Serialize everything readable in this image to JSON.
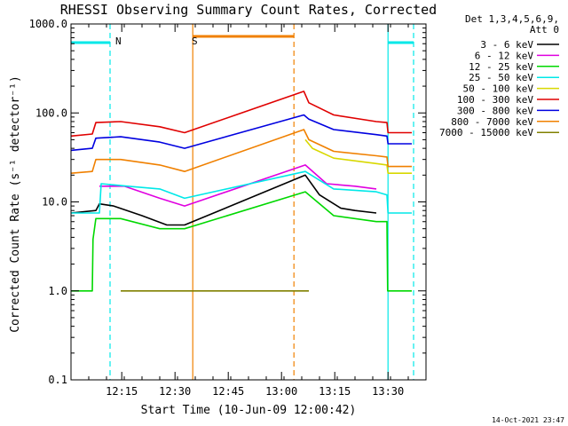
{
  "chart_data": {
    "type": "line",
    "title": "RHESSI Observing Summary Count Rates, Corrected",
    "xlabel": "Start Time (10-Jun-09 12:00:42)",
    "ylabel": "Corrected Count Rate (s⁻¹ detector⁻¹)",
    "yscale": "log",
    "ylim": [
      0.1,
      1000
    ],
    "xlim_minutes": [
      0,
      100
    ],
    "x_ticks": [
      {
        "label": "12:15",
        "t": 14.3
      },
      {
        "label": "12:30",
        "t": 29.3
      },
      {
        "label": "12:45",
        "t": 44.3
      },
      {
        "label": "13:00",
        "t": 59.3
      },
      {
        "label": "13:15",
        "t": 74.3
      },
      {
        "label": "13:30",
        "t": 89.3
      }
    ],
    "y_ticks": [
      {
        "label": "0.1",
        "v": 0.1
      },
      {
        "label": "1.0",
        "v": 1.0
      },
      {
        "label": "10.0",
        "v": 10.0
      },
      {
        "label": "100.0",
        "v": 100.0
      },
      {
        "label": "1000.0",
        "v": 1000.0
      }
    ],
    "legend_header": [
      "Det 1,3,4,5,6,9,",
      "Att 0"
    ],
    "legend_position": "right",
    "series": [
      {
        "name": "3 - 6 keV",
        "color": "#000000",
        "values": [
          {
            "t": 0,
            "y": 7.5
          },
          {
            "t": 7,
            "y": 8.0
          },
          {
            "t": 8,
            "y": 9.5
          },
          {
            "t": 12,
            "y": 9.0
          },
          {
            "t": 20,
            "y": 7.0
          },
          {
            "t": 27,
            "y": 5.5
          },
          {
            "t": 32,
            "y": 5.5
          },
          {
            "t": 66,
            "y": 20
          },
          {
            "t": 70,
            "y": 12
          },
          {
            "t": 76,
            "y": 8.5
          },
          {
            "t": 80,
            "y": 8
          },
          {
            "t": 86,
            "y": 7.5
          }
        ]
      },
      {
        "name": "6 - 12 keV",
        "color": "#e000e0",
        "values": [
          {
            "t": 8,
            "y": 15
          },
          {
            "t": 15,
            "y": 15
          },
          {
            "t": 25,
            "y": 11
          },
          {
            "t": 32,
            "y": 9
          },
          {
            "t": 66,
            "y": 26
          },
          {
            "t": 72,
            "y": 16
          },
          {
            "t": 80,
            "y": 15
          },
          {
            "t": 86,
            "y": 14
          }
        ]
      },
      {
        "name": "12 - 25 keV",
        "color": "#00d800",
        "values": [
          {
            "t": 0,
            "y": 1.0
          },
          {
            "t": 6,
            "y": 1.0
          },
          {
            "t": 6.2,
            "y": 3.8
          },
          {
            "t": 7,
            "y": 6.5
          },
          {
            "t": 14,
            "y": 6.5
          },
          {
            "t": 25,
            "y": 5
          },
          {
            "t": 32,
            "y": 5
          },
          {
            "t": 66,
            "y": 13
          },
          {
            "t": 74,
            "y": 7
          },
          {
            "t": 86,
            "y": 6
          },
          {
            "t": 89,
            "y": 6
          },
          {
            "t": 89.2,
            "y": 1.0
          },
          {
            "t": 96,
            "y": 1.0
          }
        ]
      },
      {
        "name": "25 - 50 keV",
        "color": "#00e8e8",
        "values": [
          {
            "t": 0,
            "y": 7.5
          },
          {
            "t": 8,
            "y": 7.5
          },
          {
            "t": 8.5,
            "y": 16
          },
          {
            "t": 16,
            "y": 15
          },
          {
            "t": 25,
            "y": 14
          },
          {
            "t": 32,
            "y": 11
          },
          {
            "t": 66,
            "y": 22
          },
          {
            "t": 74,
            "y": 14
          },
          {
            "t": 86,
            "y": 13
          },
          {
            "t": 89,
            "y": 12
          },
          {
            "t": 89.3,
            "y": 7.5
          },
          {
            "t": 96,
            "y": 7.5
          }
        ]
      },
      {
        "name": "50 - 100 keV",
        "color": "#d8d800",
        "values": [
          {
            "t": 66,
            "y": 50
          },
          {
            "t": 68,
            "y": 40
          },
          {
            "t": 74,
            "y": 31
          },
          {
            "t": 86,
            "y": 27
          },
          {
            "t": 89,
            "y": 26
          },
          {
            "t": 89.3,
            "y": 21
          },
          {
            "t": 96,
            "y": 21
          }
        ]
      },
      {
        "name": "100 - 300 keV",
        "color": "#e00000",
        "values": [
          {
            "t": 0,
            "y": 55
          },
          {
            "t": 6,
            "y": 58
          },
          {
            "t": 7,
            "y": 78
          },
          {
            "t": 14,
            "y": 80
          },
          {
            "t": 25,
            "y": 70
          },
          {
            "t": 32,
            "y": 60
          },
          {
            "t": 65.6,
            "y": 175
          },
          {
            "t": 67,
            "y": 130
          },
          {
            "t": 74,
            "y": 95
          },
          {
            "t": 86,
            "y": 80
          },
          {
            "t": 89,
            "y": 78
          },
          {
            "t": 89.3,
            "y": 60
          },
          {
            "t": 96,
            "y": 60
          }
        ]
      },
      {
        "name": "300 - 800 keV",
        "color": "#0000e0",
        "values": [
          {
            "t": 0,
            "y": 38
          },
          {
            "t": 6,
            "y": 40
          },
          {
            "t": 7,
            "y": 52
          },
          {
            "t": 14,
            "y": 54
          },
          {
            "t": 25,
            "y": 47
          },
          {
            "t": 32,
            "y": 40
          },
          {
            "t": 65.6,
            "y": 95
          },
          {
            "t": 67,
            "y": 85
          },
          {
            "t": 74,
            "y": 65
          },
          {
            "t": 86,
            "y": 57
          },
          {
            "t": 89,
            "y": 55
          },
          {
            "t": 89.3,
            "y": 45
          },
          {
            "t": 96,
            "y": 45
          }
        ]
      },
      {
        "name": "800 - 7000 keV",
        "color": "#f08000",
        "values": [
          {
            "t": 0,
            "y": 21
          },
          {
            "t": 6,
            "y": 22
          },
          {
            "t": 7,
            "y": 30
          },
          {
            "t": 14,
            "y": 30
          },
          {
            "t": 25,
            "y": 26
          },
          {
            "t": 32,
            "y": 22
          },
          {
            "t": 65.6,
            "y": 65
          },
          {
            "t": 67,
            "y": 50
          },
          {
            "t": 74,
            "y": 37
          },
          {
            "t": 86,
            "y": 33
          },
          {
            "t": 89,
            "y": 32
          },
          {
            "t": 89.3,
            "y": 25
          },
          {
            "t": 96,
            "y": 25
          }
        ]
      },
      {
        "name": "7000 - 15000 keV",
        "color": "#808000",
        "values": [
          {
            "t": 14,
            "y": 1.0
          },
          {
            "t": 17,
            "y": 1.0
          },
          {
            "t": 65,
            "y": 1.0
          },
          {
            "t": 67,
            "y": 1.0
          }
        ]
      }
    ],
    "annotations": [
      {
        "label": "N",
        "t": 11.0,
        "color": "#00e8e8"
      },
      {
        "label": "S",
        "t": 32.5,
        "color": "#f08000"
      }
    ],
    "periods": [
      {
        "kind": "night",
        "color": "#00e8e8",
        "start": 0,
        "end": 11.0
      },
      {
        "kind": "saa",
        "color": "#f08000",
        "start": 34.3,
        "end": 62.8
      },
      {
        "kind": "night",
        "color": "#00e8e8",
        "start": 89.3,
        "end": 96.5
      }
    ],
    "vlines": [
      {
        "t": 11.0,
        "color": "#00e8e8",
        "style": "dashed"
      },
      {
        "t": 34.3,
        "color": "#f08000",
        "style": "solid"
      },
      {
        "t": 62.8,
        "color": "#f08000",
        "style": "dashed"
      },
      {
        "t": 89.3,
        "color": "#00e8e8",
        "style": "solid"
      },
      {
        "t": 96.5,
        "color": "#00e8e8",
        "style": "dashed"
      }
    ]
  },
  "footer": {
    "timestamp": "14-Oct-2021 23:47"
  }
}
